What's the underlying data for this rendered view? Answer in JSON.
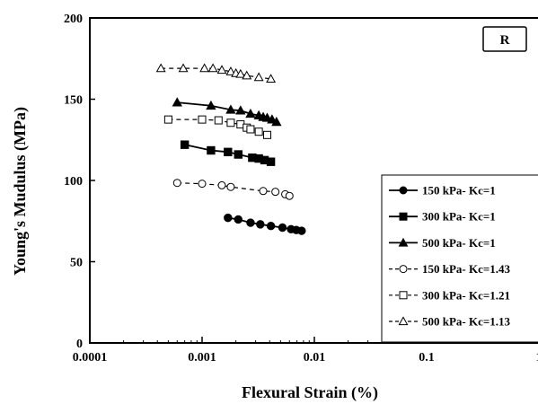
{
  "chart_data": {
    "type": "scatter",
    "xscale": "log",
    "xlim": [
      0.0001,
      1
    ],
    "ylim": [
      0,
      200
    ],
    "xticks": [
      "0.0001",
      "0.001",
      "0.01",
      "0.1",
      "1"
    ],
    "yticks": [
      "0",
      "50",
      "100",
      "150",
      "200"
    ],
    "xlabel": "Flexural Strain (%)",
    "ylabel": "Young's Mudulus (MPa)",
    "panel_label": "R",
    "legend_position": "bottom-right",
    "grid": false,
    "series": [
      {
        "name": "150 kPa- Kc=1",
        "marker": "circle",
        "fill": "filled",
        "line": "solid",
        "x": [
          0.0017,
          0.0021,
          0.0027,
          0.0033,
          0.0041,
          0.0052,
          0.0062,
          0.0069,
          0.0077
        ],
        "y": [
          77,
          76,
          74,
          73,
          72,
          71,
          70,
          69.5,
          69
        ]
      },
      {
        "name": "300 kPa- Kc=1",
        "marker": "square",
        "fill": "filled",
        "line": "solid",
        "x": [
          0.0007,
          0.0012,
          0.0017,
          0.0021,
          0.0028,
          0.0032,
          0.0036,
          0.0041
        ],
        "y": [
          122,
          118.5,
          117.5,
          116,
          114,
          113.5,
          112.5,
          111.5
        ]
      },
      {
        "name": "500 kPa- Kc=1",
        "marker": "triangle",
        "fill": "filled",
        "line": "solid",
        "x": [
          0.0006,
          0.0012,
          0.0018,
          0.0022,
          0.0027,
          0.0032,
          0.0035,
          0.0038,
          0.0042,
          0.0046
        ],
        "y": [
          148,
          146,
          143.5,
          143,
          141,
          140,
          139,
          138.5,
          137.5,
          136
        ]
      },
      {
        "name": "150 kPa- Kc=1.43",
        "marker": "circle",
        "fill": "open",
        "line": "dashed",
        "x": [
          0.0006,
          0.001,
          0.0015,
          0.0018,
          0.0035,
          0.0045,
          0.0055,
          0.006
        ],
        "y": [
          98.5,
          98,
          97,
          96,
          93.5,
          93,
          91.5,
          90.5
        ]
      },
      {
        "name": "300 kPa- Kc=1.21",
        "marker": "square",
        "fill": "open",
        "line": "dashed",
        "x": [
          0.0005,
          0.001,
          0.0014,
          0.0018,
          0.0022,
          0.0025,
          0.0027,
          0.0032,
          0.0038
        ],
        "y": [
          137.5,
          137.5,
          137,
          135.5,
          134.5,
          132.5,
          131.5,
          130,
          128
        ]
      },
      {
        "name": "500 kPa- Kc=1.13",
        "marker": "triangle",
        "fill": "open",
        "line": "dashed",
        "x": [
          0.00043,
          0.00068,
          0.00105,
          0.00125,
          0.0015,
          0.0018,
          0.002,
          0.0022,
          0.0025,
          0.0032,
          0.0041
        ],
        "y": [
          169,
          169,
          169,
          169,
          168,
          167,
          166,
          165.5,
          164.5,
          163.5,
          162.5
        ]
      }
    ]
  }
}
